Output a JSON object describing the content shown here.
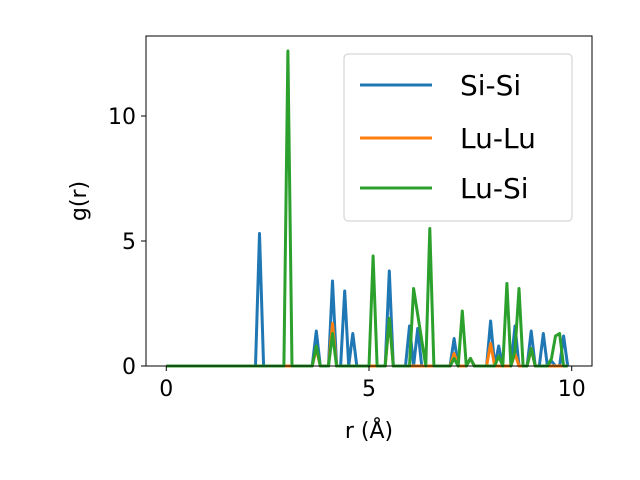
{
  "chart_data": {
    "type": "line",
    "title": "",
    "xlabel": "r (Å)",
    "ylabel": "g(r)",
    "xlim": [
      -0.5,
      10.5
    ],
    "ylim": [
      0,
      13.2
    ],
    "xticks": [
      0,
      5,
      10
    ],
    "yticks": [
      0,
      5,
      10
    ],
    "xtick_labels": [
      "0",
      "5",
      "10"
    ],
    "ytick_labels": [
      "0",
      "5",
      "10"
    ],
    "grid": false,
    "legend_position": "top-right",
    "series": [
      {
        "name": "Si-Si",
        "color": "#1f77b4",
        "x": [
          0,
          2.2,
          2.3,
          2.4,
          3.6,
          3.7,
          3.8,
          3.9,
          4.0,
          4.1,
          4.2,
          4.3,
          4.4,
          4.5,
          4.6,
          4.7,
          4.8,
          5.4,
          5.5,
          5.6,
          5.9,
          6.0,
          6.1,
          6.2,
          6.3,
          6.9,
          7.0,
          7.1,
          7.2,
          7.3,
          7.4,
          7.5,
          7.6,
          7.7,
          7.8,
          7.9,
          8.0,
          8.1,
          8.2,
          8.3,
          8.4,
          8.5,
          8.6,
          8.7,
          8.8,
          8.9,
          9.0,
          9.1,
          9.2,
          9.3,
          9.4,
          9.5,
          9.6,
          9.7,
          9.8,
          9.9
        ],
        "y": [
          0,
          0,
          5.3,
          0,
          0,
          1.4,
          0,
          0,
          0,
          3.4,
          0,
          0,
          3.0,
          0,
          1.3,
          0,
          0,
          0,
          3.8,
          0,
          0,
          1.6,
          0,
          1.5,
          0,
          0,
          0,
          1.1,
          0,
          0,
          0,
          0.3,
          0,
          0,
          0,
          0,
          1.8,
          0,
          0.8,
          0,
          0,
          0,
          1.6,
          0,
          0,
          0,
          1.4,
          0,
          0,
          1.3,
          0,
          0.2,
          0,
          0,
          1.2,
          0
        ]
      },
      {
        "name": "Lu-Lu",
        "color": "#ff7f0e",
        "x": [
          0,
          3.6,
          3.7,
          3.8,
          4.0,
          4.1,
          4.2,
          5.4,
          5.5,
          5.6,
          7.0,
          7.1,
          7.2,
          7.4,
          7.5,
          7.6,
          7.9,
          8.0,
          8.1,
          8.5,
          8.6,
          8.7,
          8.9,
          9.0,
          9.1,
          9.9
        ],
        "y": [
          0,
          0,
          0.7,
          0,
          0,
          1.7,
          0,
          0,
          1.9,
          0,
          0,
          0.5,
          0,
          0,
          0.3,
          0,
          0,
          0.9,
          0,
          0,
          0.5,
          0,
          0,
          0.7,
          0,
          0
        ]
      },
      {
        "name": "Lu-Si",
        "color": "#2ca02c",
        "x": [
          0,
          2.9,
          3.0,
          3.1,
          3.6,
          3.7,
          3.8,
          4.0,
          4.1,
          4.2,
          5.0,
          5.1,
          5.2,
          5.4,
          5.5,
          5.6,
          5.9,
          6.0,
          6.1,
          6.4,
          6.5,
          6.6,
          7.0,
          7.1,
          7.2,
          7.3,
          7.4,
          7.5,
          7.6,
          7.7,
          7.8,
          7.9,
          8.0,
          8.1,
          8.2,
          8.3,
          8.4,
          8.5,
          8.6,
          8.7,
          8.8,
          8.9,
          9.0,
          9.1,
          9.2,
          9.3,
          9.4,
          9.5,
          9.6,
          9.7,
          9.8,
          9.9
        ],
        "y": [
          0,
          0,
          12.6,
          0,
          0,
          0.8,
          0,
          0,
          1.3,
          0,
          0,
          4.4,
          0,
          0,
          1.9,
          0,
          0,
          0,
          3.1,
          0,
          5.5,
          0,
          0,
          0.3,
          0,
          2.2,
          0,
          0.3,
          0,
          0,
          0,
          0,
          0,
          0,
          0.4,
          0,
          3.3,
          0,
          0.6,
          3.1,
          0,
          0,
          0.7,
          0,
          0,
          0,
          0,
          0.3,
          1.2,
          1.3,
          0,
          0
        ]
      }
    ]
  }
}
